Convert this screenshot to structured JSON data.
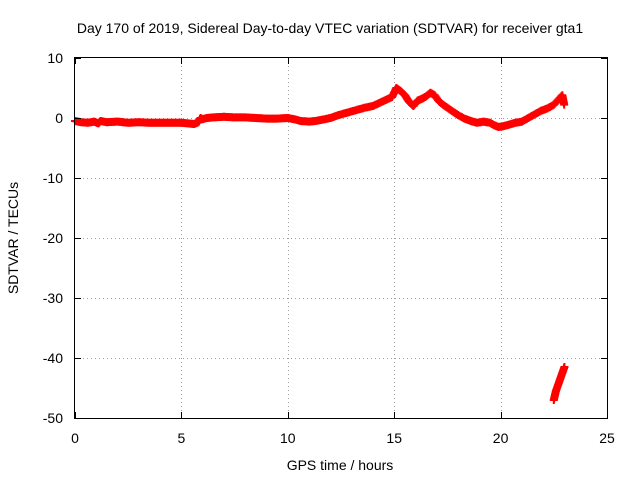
{
  "chart_data": {
    "type": "scatter",
    "title": "Day 170 of 2019, Sidereal Day-to-day VTEC variation (SDTVAR) for receiver gta1",
    "xlabel": "GPS time / hours",
    "ylabel": "SDTVAR / TECUs",
    "xlim": [
      0,
      25
    ],
    "ylim": [
      -50,
      10
    ],
    "xticks": [
      0,
      5,
      10,
      15,
      20,
      25
    ],
    "yticks": [
      10,
      0,
      -10,
      -20,
      -30,
      -40,
      -50
    ],
    "grid": true,
    "marker": "+",
    "color": "#ff0000",
    "series": [
      {
        "name": "gta1",
        "x": [
          0.0,
          0.3,
          0.6,
          0.9,
          1.1,
          1.2,
          1.5,
          2.0,
          2.5,
          3.0,
          3.5,
          4.0,
          4.5,
          5.0,
          5.3,
          5.6,
          5.8,
          5.9,
          6.0,
          6.2,
          6.5,
          7.0,
          7.5,
          8.0,
          8.5,
          9.0,
          9.5,
          10.0,
          10.3,
          10.6,
          11.0,
          11.3,
          11.6,
          12.0,
          12.4,
          12.8,
          13.2,
          13.6,
          14.0,
          14.3,
          14.6,
          14.9,
          15.1,
          15.3,
          15.5,
          15.7,
          15.9,
          16.1,
          16.3,
          16.5,
          16.7,
          16.9,
          17.1,
          17.3,
          17.5,
          17.7,
          18.0,
          18.3,
          18.6,
          18.9,
          19.2,
          19.5,
          19.7,
          19.9,
          20.1,
          20.4,
          20.7,
          21.0,
          21.3,
          21.6,
          21.9,
          22.2,
          22.5,
          22.9,
          23.0,
          22.5,
          22.6,
          22.7,
          22.8,
          22.9,
          23.0
        ],
        "y": [
          -0.5,
          -0.7,
          -0.8,
          -0.6,
          -0.9,
          -0.5,
          -0.7,
          -0.6,
          -0.8,
          -0.7,
          -0.8,
          -0.8,
          -0.8,
          -0.8,
          -0.9,
          -1.0,
          -0.7,
          0.0,
          -0.2,
          0.0,
          0.1,
          0.2,
          0.1,
          0.1,
          0.0,
          -0.1,
          -0.1,
          0.0,
          -0.2,
          -0.5,
          -0.6,
          -0.5,
          -0.3,
          0.0,
          0.5,
          0.9,
          1.3,
          1.7,
          2.0,
          2.5,
          3.0,
          3.5,
          5.0,
          4.5,
          3.8,
          2.7,
          2.0,
          2.9,
          3.2,
          3.6,
          4.2,
          3.8,
          2.8,
          2.2,
          1.7,
          1.2,
          0.5,
          -0.1,
          -0.5,
          -0.8,
          -0.6,
          -0.8,
          -1.2,
          -1.5,
          -1.4,
          -1.1,
          -0.8,
          -0.6,
          0.0,
          0.6,
          1.2,
          1.6,
          2.2,
          3.8,
          2.0,
          -47.0,
          -45.5,
          -44.5,
          -43.5,
          -42.5,
          -41.5
        ]
      }
    ]
  }
}
